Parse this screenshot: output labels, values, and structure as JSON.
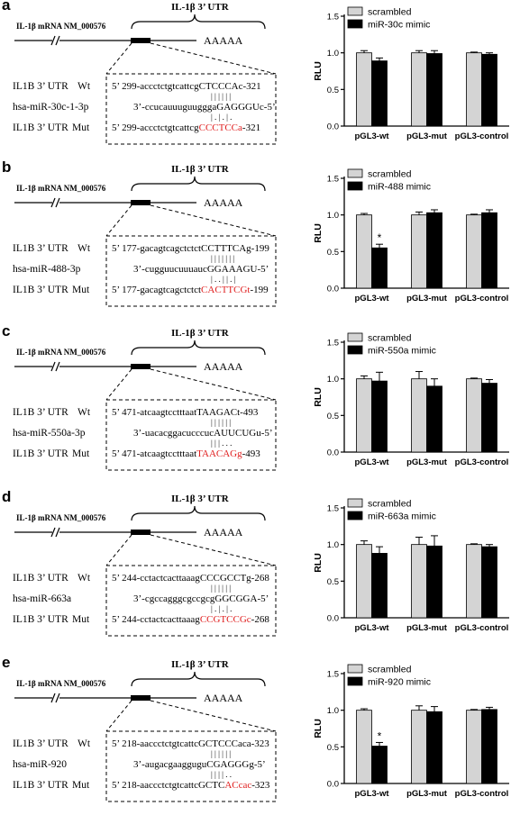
{
  "panels": [
    {
      "label": "a",
      "mrna_label": "IL-1β mRNA NM_000576",
      "utr_label": "IL-1β 3’ UTR",
      "polya": "AAAAA",
      "rows": [
        {
          "name": "IL1B 3’ UTR",
          "type": "Wt",
          "seq_plain": "5’  299-accctctgtcattcg",
          "seq_mid": "CTCCCA",
          "seq_tail": "c-321"
        },
        {
          "name": "hsa-miR-30c-1-3p",
          "type": "",
          "seq_plain": "3’-ccucauuuguuggga",
          "seq_mid": "GAGGGU",
          "seq_tail": "c-5’"
        },
        {
          "name": "IL1B 3’ UTR",
          "type": "Mut",
          "seq_plain": "5’  299-accctctgtcattcg",
          "seq_mid": "CCCTCCa",
          "seq_tail": "-321"
        }
      ],
      "pairing_top": "| | | | | |",
      "pairing_bottom": "| . | . | .",
      "chart_data": {
        "type": "bar",
        "categories": [
          "pGL3-wt",
          "pGL3-mut",
          "pGL3-control"
        ],
        "series": [
          {
            "name": "scrambled",
            "values": [
              1.0,
              1.0,
              1.0
            ],
            "errors": [
              0.03,
              0.03,
              0.01
            ]
          },
          {
            "name": "miR-30c mimic",
            "values": [
              0.89,
              0.99,
              0.98
            ],
            "errors": [
              0.04,
              0.04,
              0.02
            ]
          }
        ],
        "ylabel": "RLU",
        "ylim": [
          0,
          1.5
        ],
        "yticks": [
          "0.0",
          "0.5",
          "1.0",
          "1.5"
        ],
        "significance": [],
        "legend_position": "top"
      }
    },
    {
      "label": "b",
      "mrna_label": "IL-1β mRNA NM_000576",
      "utr_label": "IL-1β 3’ UTR",
      "polya": "AAAAA",
      "rows": [
        {
          "name": "IL1B 3’ UTR",
          "type": "Wt",
          "seq_plain": "5’  177-gacagtcagctctct",
          "seq_mid": "CCTTTCA",
          "seq_tail": "g-199"
        },
        {
          "name": "hsa-miR-488-3p",
          "type": "",
          "seq_plain": "3’-cugguucuuuauc",
          "seq_mid": "GGAAAGU",
          "seq_tail": "-5’"
        },
        {
          "name": "IL1B 3’ UTR",
          "type": "Mut",
          "seq_plain": "5’  177-gacagtcagctctct",
          "seq_mid": "CACTTCGt",
          "seq_tail": "-199"
        }
      ],
      "pairing_top": "| | | | | | |",
      "pairing_bottom": "| . . | | . |",
      "chart_data": {
        "type": "bar",
        "categories": [
          "pGL3-wt",
          "pGL3-mut",
          "pGL3-control"
        ],
        "series": [
          {
            "name": "scrambled",
            "values": [
              1.0,
              1.0,
              1.0
            ],
            "errors": [
              0.02,
              0.04,
              0.01
            ]
          },
          {
            "name": "miR-488 mimic",
            "values": [
              0.55,
              1.03,
              1.03
            ],
            "errors": [
              0.05,
              0.04,
              0.04
            ]
          }
        ],
        "ylabel": "RLU",
        "ylim": [
          0,
          1.5
        ],
        "yticks": [
          "0.0",
          "0.5",
          "1.0",
          "1.5"
        ],
        "significance": [
          {
            "category": "pGL3-wt",
            "series": 1,
            "mark": "*"
          }
        ],
        "legend_position": "top"
      }
    },
    {
      "label": "c",
      "mrna_label": "IL-1β mRNA NM_000576",
      "utr_label": "IL-1β 3’ UTR",
      "polya": "AAAAA",
      "rows": [
        {
          "name": "IL1B 3’ UTR",
          "type": "Wt",
          "seq_plain": "5’  471-atcaagtcctttaat",
          "seq_mid": "TAAGACt",
          "seq_tail": "-493"
        },
        {
          "name": "hsa-miR-550a-3p",
          "type": "",
          "seq_plain": "3’-uacacggacucccuc",
          "seq_mid": "AUUCUGu",
          "seq_tail": "-5’"
        },
        {
          "name": "IL1B 3’ UTR",
          "type": "Mut",
          "seq_plain": "5’  471-atcaagtcctttaat",
          "seq_mid": "TAACAGg",
          "seq_tail": "-493"
        }
      ],
      "pairing_top": "| | | | | |",
      "pairing_bottom": "| | | . . .",
      "chart_data": {
        "type": "bar",
        "categories": [
          "pGL3-wt",
          "pGL3-mut",
          "pGL3-control"
        ],
        "series": [
          {
            "name": "scrambled",
            "values": [
              1.0,
              1.0,
              1.0
            ],
            "errors": [
              0.04,
              0.1,
              0.01
            ]
          },
          {
            "name": "miR-550a mimic",
            "values": [
              0.97,
              0.9,
              0.94
            ],
            "errors": [
              0.12,
              0.1,
              0.05
            ]
          }
        ],
        "ylabel": "RLU",
        "ylim": [
          0,
          1.5
        ],
        "yticks": [
          "0.0",
          "0.5",
          "1.0",
          "1.5"
        ],
        "significance": [],
        "legend_position": "top"
      }
    },
    {
      "label": "d",
      "mrna_label": "IL-1β mRNA NM_000576",
      "utr_label": "IL-1β 3’ UTR",
      "polya": "AAAAA",
      "rows": [
        {
          "name": "IL1B 3’ UTR",
          "type": "Wt",
          "seq_plain": "5’  244-cctactcacttaaag",
          "seq_mid": "CCCGCCT",
          "seq_tail": "g-268"
        },
        {
          "name": "hsa-miR-663a",
          "type": "",
          "seq_plain": "3’-cgccagggcgccgcg",
          "seq_mid": "GGCGGA",
          "seq_tail": "-5’"
        },
        {
          "name": "IL1B 3’ UTR",
          "type": "Mut",
          "seq_plain": "5’  244-cctactcacttaaag",
          "seq_mid": "CCGTCCGc",
          "seq_tail": "-268"
        }
      ],
      "pairing_top": "| | | | | |",
      "pairing_bottom": "| . | . | .",
      "chart_data": {
        "type": "bar",
        "categories": [
          "pGL3-wt",
          "pGL3-mut",
          "pGL3-control"
        ],
        "series": [
          {
            "name": "scrambled",
            "values": [
              1.0,
              1.0,
              1.0
            ],
            "errors": [
              0.05,
              0.1,
              0.01
            ]
          },
          {
            "name": "miR-663a mimic",
            "values": [
              0.88,
              0.98,
              0.97
            ],
            "errors": [
              0.09,
              0.14,
              0.03
            ]
          }
        ],
        "ylabel": "RLU",
        "ylim": [
          0,
          1.5
        ],
        "yticks": [
          "0.0",
          "0.5",
          "1.0",
          "1.5"
        ],
        "significance": [],
        "legend_position": "top"
      }
    },
    {
      "label": "e",
      "mrna_label": "IL-1β mRNA NM_000576",
      "utr_label": "IL-1β 3’ UTR",
      "polya": "AAAAA",
      "rows": [
        {
          "name": "IL1B 3’ UTR",
          "type": "Wt",
          "seq_plain": "5’  218-aaccctctgtcattc",
          "seq_mid": "GCTCCC",
          "seq_tail": "aca-323"
        },
        {
          "name": "hsa-miR-920",
          "type": "",
          "seq_plain": "3’-augacgaagguguC",
          "seq_mid": "GAGGG",
          "seq_tail": "g-5’"
        },
        {
          "name": "IL1B 3’ UTR",
          "type": "Mut",
          "seq_plain": "5’  218-aaccctctgtcattcGCTC",
          "seq_mid": "ACcac",
          "seq_tail": "-323"
        }
      ],
      "pairing_top": "| | | | | |",
      "pairing_bottom": "| | | | . .",
      "chart_data": {
        "type": "bar",
        "categories": [
          "pGL3-wt",
          "pGL3-mut",
          "pGL3-control"
        ],
        "series": [
          {
            "name": "scrambled",
            "values": [
              1.0,
              1.0,
              1.0
            ],
            "errors": [
              0.02,
              0.06,
              0.01
            ]
          },
          {
            "name": "miR-920 mimic",
            "values": [
              0.51,
              0.98,
              1.01
            ],
            "errors": [
              0.05,
              0.07,
              0.03
            ]
          }
        ],
        "ylabel": "RLU",
        "ylim": [
          0,
          1.5
        ],
        "yticks": [
          "0.0",
          "0.5",
          "1.0",
          "1.5"
        ],
        "significance": [
          {
            "category": "pGL3-wt",
            "series": 1,
            "mark": "*"
          }
        ],
        "legend_position": "top"
      }
    }
  ],
  "colors": {
    "scrambled": "#d4d4d4",
    "mimic": "#000000",
    "mutation": "#e02020"
  }
}
